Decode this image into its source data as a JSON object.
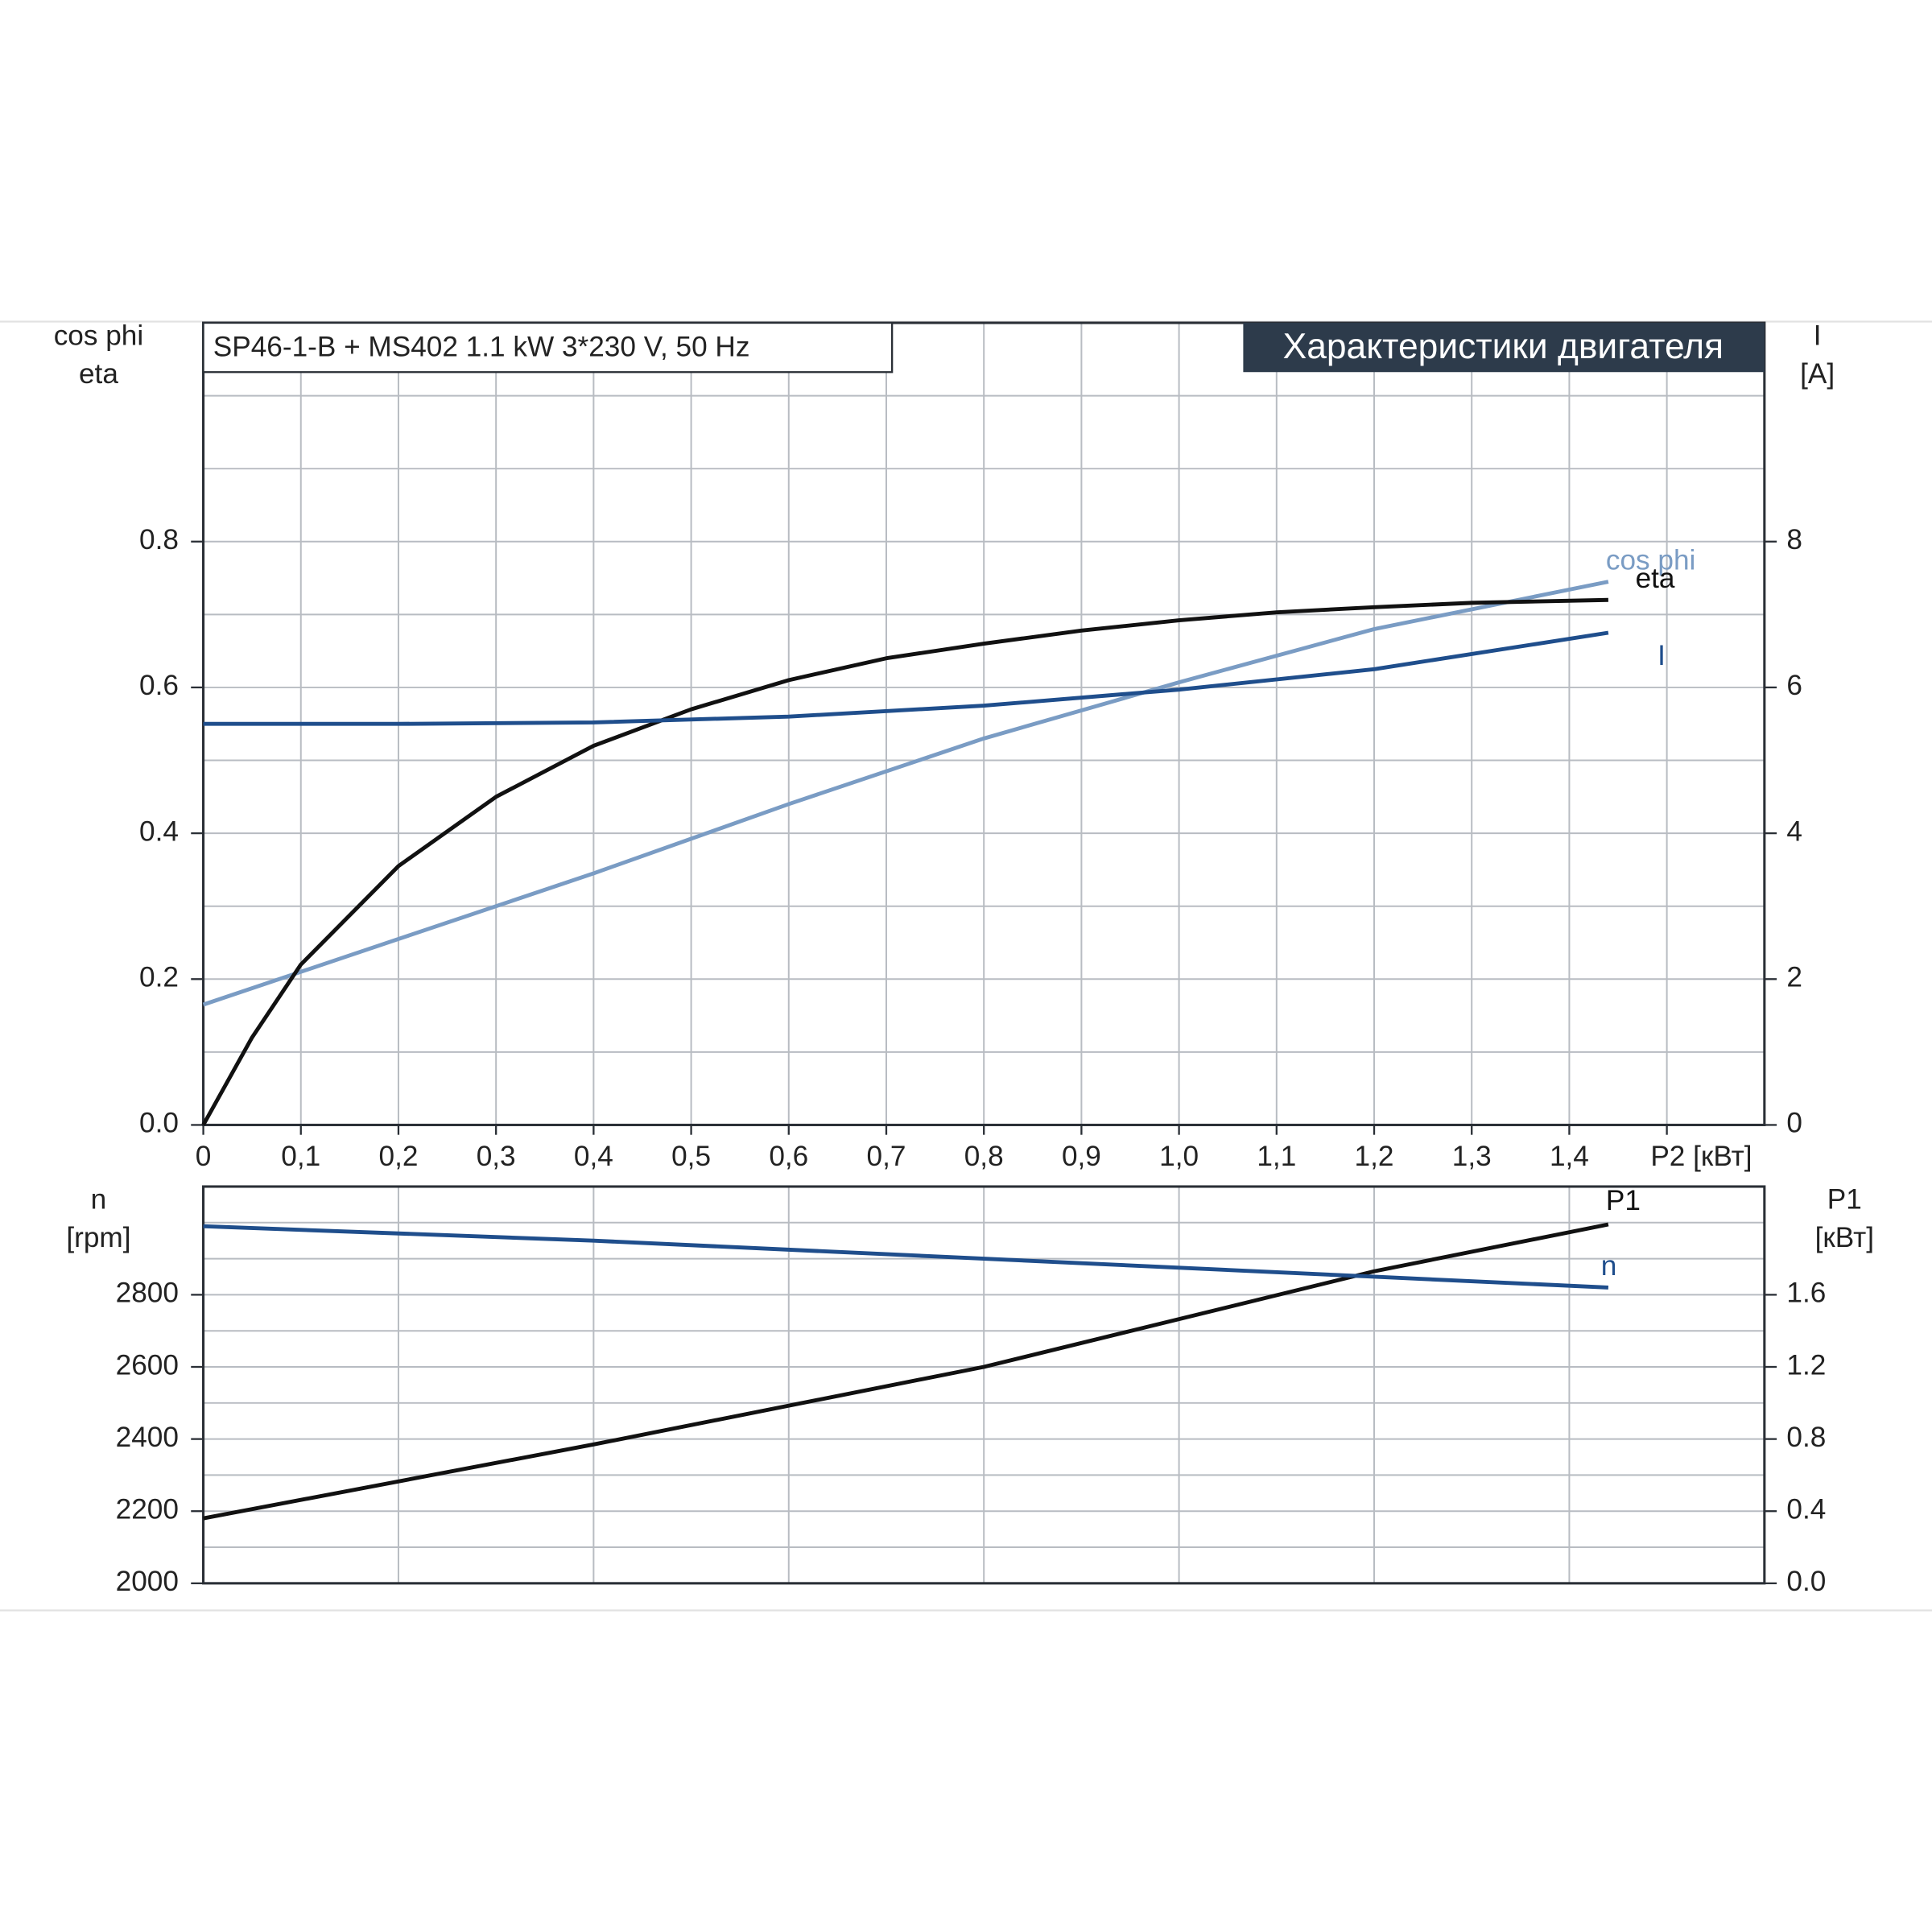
{
  "chart_data": [
    {
      "type": "line",
      "title": "SP46-1-B + MS402   1.1 kW   3*230 V, 50 Hz",
      "subtitle": "Характеристики двигателя",
      "xlabel": "P2 [кВт]",
      "ylabel": [
        "cos phi",
        "eta"
      ],
      "y2label": [
        "I",
        "[A]"
      ],
      "xlim": [
        0,
        1.6
      ],
      "xticks": [
        0,
        {
          "value": 0.1,
          "label": "0,1"
        },
        {
          "value": 0.2,
          "label": "0,2"
        },
        {
          "value": 0.3,
          "label": "0,3"
        },
        {
          "value": 0.4,
          "label": "0,4"
        },
        {
          "value": 0.5,
          "label": "0,5"
        },
        {
          "value": 0.6,
          "label": "0,6"
        },
        {
          "value": 0.7,
          "label": "0,7"
        },
        {
          "value": 0.8,
          "label": "0,8"
        },
        {
          "value": 0.9,
          "label": "0,9"
        },
        {
          "value": 1.0,
          "label": "1,0"
        },
        {
          "value": 1.1,
          "label": "1,1"
        },
        {
          "value": 1.2,
          "label": "1,2"
        },
        {
          "value": 1.3,
          "label": "1,3"
        },
        {
          "value": 1.4,
          "label": "1,4"
        }
      ],
      "ylim": [
        0,
        1.1
      ],
      "yticks": [
        {
          "value": 0,
          "label": "0.0"
        },
        0.2,
        0.4,
        0.6,
        0.8
      ],
      "y2lim": [
        0,
        11
      ],
      "y2ticks": [
        0,
        2,
        4,
        6,
        8
      ],
      "grid": true,
      "minor_grid": true,
      "series": [
        {
          "name": "cos phi",
          "color": "#7a9cc4",
          "x": [
            0,
            0.2,
            0.4,
            0.6,
            0.8,
            1.0,
            1.2,
            1.44
          ],
          "values": [
            0.165,
            0.255,
            0.345,
            0.44,
            0.53,
            0.607,
            0.68,
            0.745
          ]
        },
        {
          "name": "eta",
          "color": "#111111",
          "x": [
            0,
            0.05,
            0.1,
            0.2,
            0.3,
            0.4,
            0.5,
            0.6,
            0.7,
            0.8,
            0.9,
            1.0,
            1.1,
            1.2,
            1.3,
            1.44
          ],
          "values": [
            0,
            0.12,
            0.22,
            0.355,
            0.45,
            0.52,
            0.57,
            0.61,
            0.64,
            0.66,
            0.678,
            0.692,
            0.703,
            0.71,
            0.716,
            0.72
          ]
        },
        {
          "name": "I",
          "color": "#1f4e8c",
          "axis": "y2",
          "x": [
            0,
            0.2,
            0.4,
            0.6,
            0.8,
            1.0,
            1.2,
            1.44
          ],
          "values": [
            5.5,
            5.5,
            5.52,
            5.6,
            5.75,
            5.97,
            6.25,
            6.75
          ]
        }
      ]
    },
    {
      "type": "line",
      "ylabel": [
        "n",
        "[rpm]"
      ],
      "y2label": [
        "P1",
        "[кВт]"
      ],
      "xlim": [
        0,
        1.6
      ],
      "ylim": [
        2000,
        3100
      ],
      "yticks": [
        2000,
        2200,
        2400,
        2600,
        2800
      ],
      "y2lim": [
        0,
        2.2
      ],
      "y2ticks": [
        {
          "value": 0,
          "label": "0.0"
        },
        0.4,
        0.8,
        1.2,
        1.6
      ],
      "grid": true,
      "minor_grid": true,
      "series": [
        {
          "name": "P1",
          "color": "#111111",
          "axis": "y2",
          "x": [
            0,
            0.4,
            0.8,
            1.2,
            1.44
          ],
          "values": [
            0.36,
            0.77,
            1.2,
            1.73,
            1.99
          ]
        },
        {
          "name": "n",
          "color": "#1f4e8c",
          "x": [
            0,
            0.4,
            0.8,
            1.2,
            1.44
          ],
          "values": [
            2990,
            2950,
            2900,
            2850,
            2820
          ]
        }
      ]
    }
  ]
}
